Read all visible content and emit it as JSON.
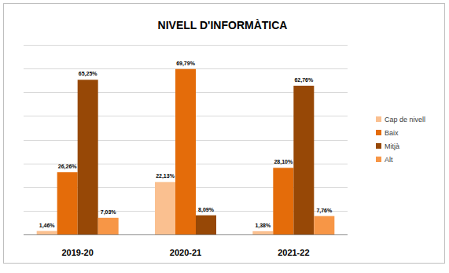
{
  "chart_data": {
    "type": "bar",
    "title": "NIVELL D'INFORMÀTICA",
    "categories": [
      "2019-20",
      "2020-21",
      "2021-22"
    ],
    "series": [
      {
        "name": "Cap de nivell",
        "color": "#fac090",
        "values": [
          1.46,
          22.13,
          1.38
        ],
        "value_labels": [
          "1,46%",
          "22,13%",
          "1,38%"
        ]
      },
      {
        "name": "Baix",
        "color": "#e46c0a",
        "values": [
          26.26,
          69.79,
          28.1
        ],
        "value_labels": [
          "26,26%",
          "69,79%",
          "28,10%"
        ]
      },
      {
        "name": "Mitjà",
        "color": "#974806",
        "values": [
          65.25,
          8.09,
          62.76
        ],
        "value_labels": [
          "65,25%",
          "8,09%",
          "62,76%"
        ]
      },
      {
        "name": "Alt",
        "color": "#f79646",
        "values": [
          7.03,
          null,
          7.76
        ],
        "value_labels": [
          "7,03%",
          null,
          "7,76%"
        ]
      }
    ],
    "ylim": [
      0,
      80
    ],
    "yticks": [
      0,
      10,
      20,
      30,
      40,
      50,
      60,
      70,
      80
    ],
    "grid": true,
    "legend": "right",
    "data_labels": true,
    "tick_labels": "x"
  }
}
